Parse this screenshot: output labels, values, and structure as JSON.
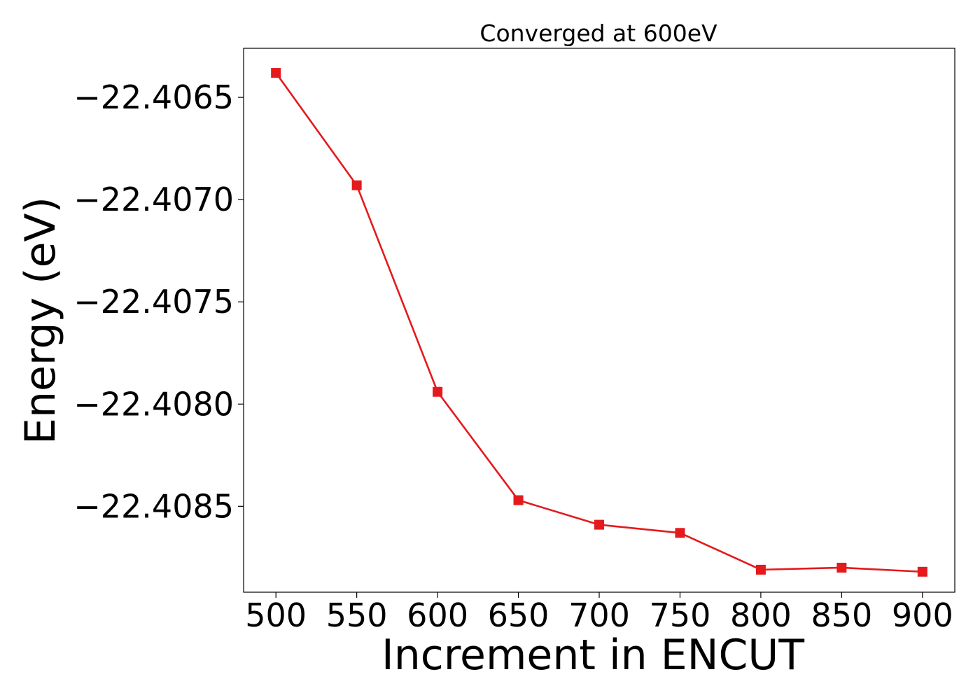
{
  "chart_data": {
    "type": "line",
    "title": "Converged at 600eV",
    "xlabel": "Increment in ENCUT",
    "ylabel": "Energy (eV)",
    "x": [
      500,
      550,
      600,
      650,
      700,
      750,
      800,
      850,
      900
    ],
    "series": [
      {
        "values": [
          -22.40638,
          -22.40693,
          -22.40794,
          -22.40847,
          -22.40859,
          -22.40863,
          -22.40881,
          -22.4088,
          -22.40882
        ],
        "color": "#e41a1c",
        "marker": "square"
      }
    ],
    "xlim": [
      480,
      920
    ],
    "ylim": [
      -22.40892,
      -22.40626
    ],
    "xticks": [
      500,
      550,
      600,
      650,
      700,
      750,
      800,
      850,
      900
    ],
    "xtick_labels": [
      "500",
      "550",
      "600",
      "650",
      "700",
      "750",
      "800",
      "850",
      "900"
    ],
    "yticks": [
      -22.4065,
      -22.407,
      -22.4075,
      -22.408,
      -22.4085
    ],
    "ytick_labels": [
      "−22.4065",
      "−22.4070",
      "−22.4075",
      "−22.4080",
      "−22.4085"
    ],
    "grid": false,
    "legend": false
  }
}
